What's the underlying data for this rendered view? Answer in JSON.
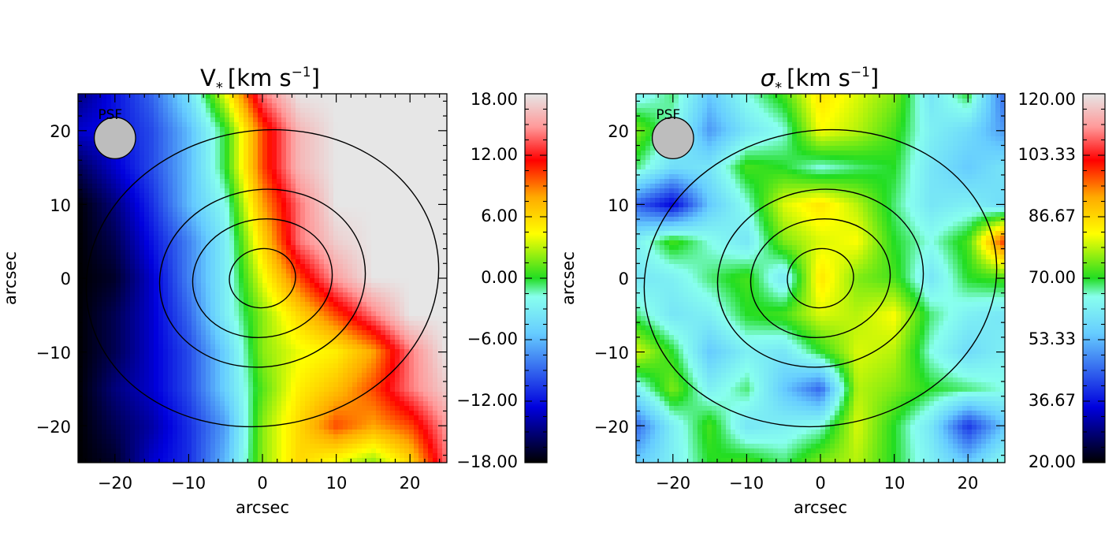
{
  "chart_data": [
    {
      "type": "heatmap",
      "title_main": "V",
      "title_sub": "*",
      "title_units": "[km s",
      "title_exp": "−1",
      "title_close": "]",
      "xlabel": "arcsec",
      "ylabel": "arcsec",
      "xlim": [
        -25,
        25
      ],
      "ylim": [
        -25,
        25
      ],
      "x_ticks": [
        -20,
        -10,
        0,
        10,
        20
      ],
      "x_tick_labels": [
        "−20",
        "−10",
        "0",
        "10",
        "20"
      ],
      "y_ticks": [
        -20,
        -10,
        0,
        10,
        20
      ],
      "y_tick_labels": [
        "−20",
        "−10",
        "0",
        "10",
        "20"
      ],
      "colorbar": {
        "range": [
          -18,
          18
        ],
        "ticks": [
          -18,
          -12,
          -6,
          0,
          6,
          12,
          18
        ],
        "tick_labels": [
          "−18.00",
          "−12.00",
          "−6.00",
          "0.00",
          "6.00",
          "12.00",
          "18.00"
        ]
      },
      "psf": {
        "label": "PSF",
        "x": -20,
        "y": 19,
        "radius": 2.8
      },
      "grid_resolution_arcsec": 5,
      "z_grid": [
        [
          -15,
          -12,
          -9,
          -4,
          4,
          14,
          18,
          18,
          18,
          18,
          18
        ],
        [
          -13,
          -12,
          -10,
          -6,
          0,
          10,
          16,
          18,
          18,
          18,
          18
        ],
        [
          -16,
          -13,
          -10,
          -6,
          0,
          10,
          16,
          18,
          18,
          18,
          18
        ],
        [
          -18,
          -15,
          -11,
          -6,
          -2,
          8,
          14,
          18,
          18,
          18,
          18
        ],
        [
          -18,
          -16,
          -12,
          -8,
          -3,
          6,
          14,
          17,
          18,
          18,
          18
        ],
        [
          -18,
          -17,
          -13,
          -8,
          -3,
          4,
          10,
          15,
          18,
          18,
          18
        ],
        [
          -18,
          -16,
          -13,
          -9,
          -3,
          2,
          6,
          10,
          14,
          18,
          18
        ],
        [
          -18,
          -16,
          -13,
          -10,
          -5,
          2,
          4,
          5,
          8,
          14,
          18
        ],
        [
          -18,
          -15,
          -13,
          -10,
          -5,
          1,
          5,
          7,
          10,
          14,
          17
        ],
        [
          -18,
          -16,
          -14,
          -11,
          -7,
          2,
          6,
          10,
          8,
          10,
          15
        ],
        [
          -18,
          -17,
          -13,
          -11,
          -6,
          2,
          6,
          4,
          2,
          6,
          14
        ]
      ],
      "contours": [
        {
          "a": 24,
          "b": 20,
          "angle_deg": 10,
          "cx": 0,
          "cy": 0
        },
        {
          "a": 14,
          "b": 12,
          "angle_deg": 10,
          "cx": 0,
          "cy": 0
        },
        {
          "a": 9.5,
          "b": 8,
          "angle_deg": 10,
          "cx": 0,
          "cy": 0
        },
        {
          "a": 4.5,
          "b": 4,
          "angle_deg": 10,
          "cx": 0,
          "cy": 0
        }
      ]
    },
    {
      "type": "heatmap",
      "title_main": "σ",
      "title_sub": "*",
      "title_units": "[km s",
      "title_exp": "−1",
      "title_close": "]",
      "xlabel": "arcsec",
      "ylabel": "arcsec",
      "xlim": [
        -25,
        25
      ],
      "ylim": [
        -25,
        25
      ],
      "x_ticks": [
        -20,
        -10,
        0,
        10,
        20
      ],
      "x_tick_labels": [
        "−20",
        "−10",
        "0",
        "10",
        "20"
      ],
      "y_ticks": [
        -20,
        -10,
        0,
        10,
        20
      ],
      "y_tick_labels": [
        "−20",
        "−10",
        "0",
        "10",
        "20"
      ],
      "colorbar": {
        "range": [
          20,
          120
        ],
        "ticks": [
          20,
          36.67,
          53.33,
          70,
          86.67,
          103.33,
          120
        ],
        "tick_labels": [
          "20.00",
          "36.67",
          "53.33",
          "70.00",
          "86.67",
          "103.33",
          "120.00"
        ]
      },
      "psf": {
        "label": "PSF",
        "x": -20,
        "y": 19,
        "radius": 2.8
      },
      "grid_resolution_arcsec": 5,
      "z_grid": [
        [
          62,
          68,
          55,
          65,
          72,
          85,
          80,
          75,
          60,
          70,
          45
        ],
        [
          75,
          65,
          50,
          60,
          65,
          82,
          78,
          72,
          62,
          58,
          50
        ],
        [
          68,
          58,
          60,
          72,
          70,
          65,
          68,
          70,
          60,
          55,
          60
        ],
        [
          45,
          35,
          55,
          65,
          80,
          85,
          78,
          68,
          60,
          62,
          58
        ],
        [
          62,
          72,
          65,
          60,
          75,
          80,
          82,
          70,
          65,
          72,
          100
        ],
        [
          60,
          62,
          68,
          72,
          60,
          85,
          75,
          72,
          60,
          70,
          72
        ],
        [
          68,
          60,
          62,
          70,
          72,
          80,
          78,
          82,
          68,
          62,
          60
        ],
        [
          80,
          70,
          55,
          62,
          60,
          70,
          80,
          78,
          65,
          58,
          62
        ],
        [
          62,
          75,
          62,
          68,
          55,
          45,
          78,
          75,
          70,
          68,
          65
        ],
        [
          45,
          62,
          72,
          60,
          62,
          65,
          80,
          70,
          60,
          40,
          55
        ],
        [
          55,
          62,
          70,
          72,
          68,
          75,
          78,
          70,
          62,
          55,
          65
        ]
      ],
      "contours": [
        {
          "a": 24,
          "b": 20,
          "angle_deg": 10,
          "cx": 0,
          "cy": 0
        },
        {
          "a": 14,
          "b": 12,
          "angle_deg": 10,
          "cx": 0,
          "cy": 0
        },
        {
          "a": 9.5,
          "b": 8,
          "angle_deg": 10,
          "cx": 0,
          "cy": 0
        },
        {
          "a": 4.5,
          "b": 4,
          "angle_deg": 10,
          "cx": 0,
          "cy": 0
        }
      ]
    }
  ]
}
